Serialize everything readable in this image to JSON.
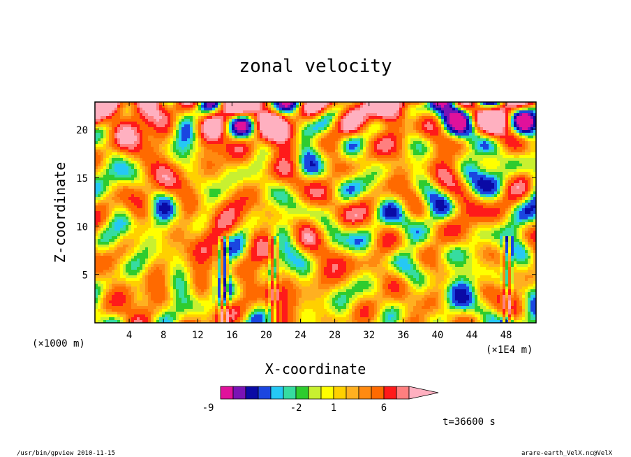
{
  "chart_data": {
    "type": "heatmap",
    "title": "zonal velocity",
    "xlabel": "X-coordinate",
    "ylabel": "Z-coordinate",
    "x_unit_left": "(×1000 m)",
    "x_unit_right": "(×1E4 m)",
    "xlim": [
      0,
      51.5
    ],
    "ylim": [
      0,
      22.8
    ],
    "x_ticks": [
      "4",
      "8",
      "12",
      "16",
      "20",
      "24",
      "28",
      "32",
      "36",
      "40",
      "44",
      "48"
    ],
    "y_ticks": [
      "5",
      "10",
      "15",
      "20"
    ],
    "x_tick_values": [
      4,
      8,
      12,
      16,
      20,
      24,
      28,
      32,
      36,
      40,
      44,
      48
    ],
    "y_tick_values": [
      5,
      10,
      15,
      20
    ],
    "colorbar": {
      "labels": [
        "-9",
        "-2",
        "1",
        "6"
      ],
      "label_values": [
        -9,
        -2,
        1,
        6
      ],
      "levels": [
        -12,
        -10,
        -8,
        -6,
        -4,
        -3,
        -2,
        -1,
        0,
        1,
        2,
        3,
        4,
        6,
        8,
        10,
        14
      ],
      "colors": [
        "#e0119b",
        "#7a13b5",
        "#0a0aa5",
        "#1a46e0",
        "#25c8f5",
        "#36dca0",
        "#2ecc2e",
        "#c8f030",
        "#ffff00",
        "#ffd000",
        "#ffb020",
        "#ff8a10",
        "#ff6a00",
        "#ff1a1a",
        "#ff7f7f",
        "#ffb0c0"
      ]
    },
    "time_label": "t=36600 s"
  },
  "footer": {
    "left": "/usr/bin/gpview   2010-11-15",
    "right": "arare-earth_VelX.nc@VelX"
  }
}
